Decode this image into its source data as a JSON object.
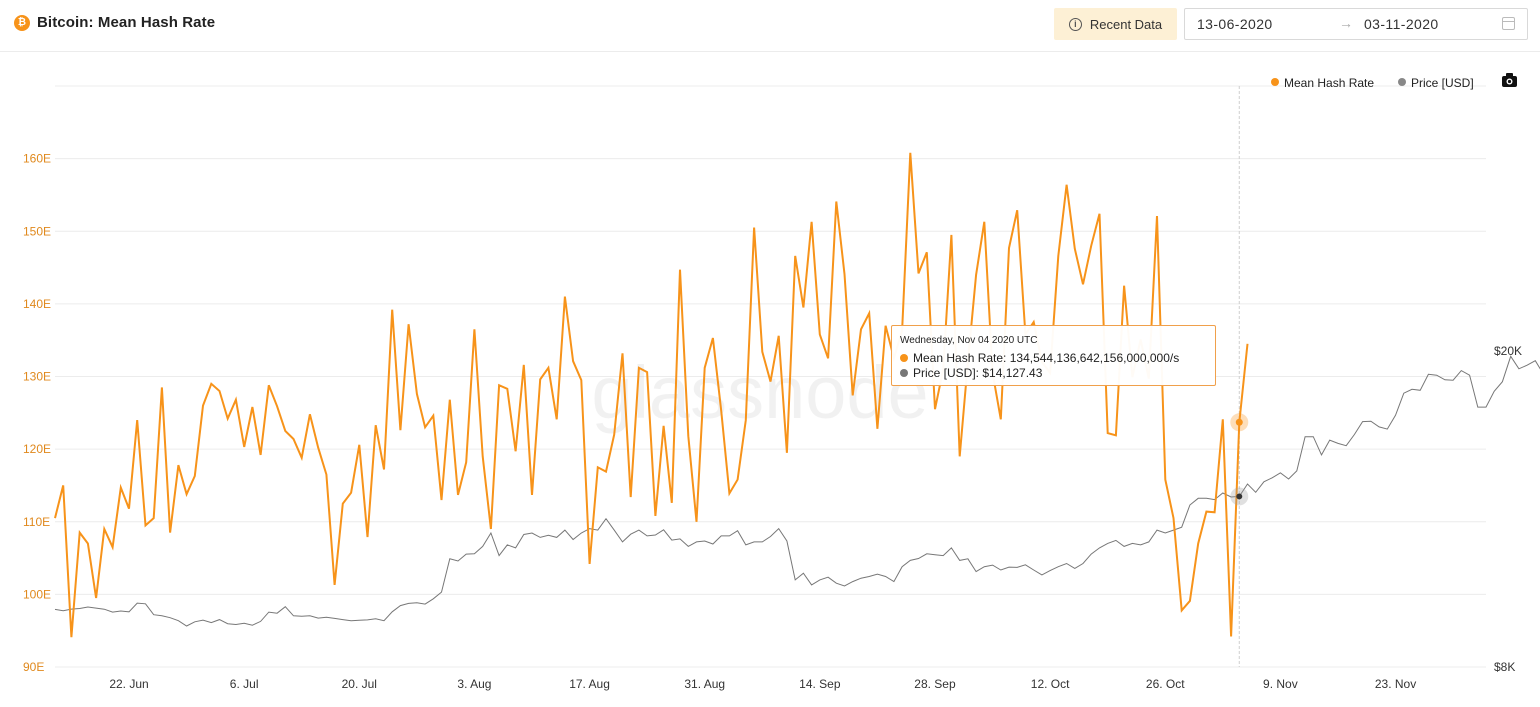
{
  "header": {
    "title": "Bitcoin: Mean Hash Rate",
    "btc_icon_glyph": "₿",
    "recent_label": "Recent Data",
    "date_from": "13-06-2020",
    "date_to": "03-11-2020",
    "arrow": "→"
  },
  "watermark": "glassnode",
  "legend": [
    {
      "label": "Mean Hash Rate",
      "color": "#f7931a"
    },
    {
      "label": "Price [USD]",
      "color": "#888888"
    }
  ],
  "tooltip": {
    "date": "Wednesday, Nov 04 2020 UTC",
    "hash_label": "Mean Hash Rate: 134,544,136,642,156,000,000/s",
    "price_label": "Price [USD]: $14,127.43"
  },
  "colors": {
    "hash": "#f7931a",
    "price": "#777777",
    "accent": "#f7931a"
  },
  "icons": {
    "title": "bitcoin-icon",
    "recent": "info-icon",
    "calendar": "calendar-icon",
    "camera": "camera-icon"
  },
  "chart_data": {
    "type": "line",
    "y_left": {
      "label": "",
      "unit": "E",
      "ticks": [
        "90E",
        "100E",
        "110E",
        "120E",
        "130E",
        "140E",
        "150E",
        "160E"
      ],
      "range": [
        90,
        170
      ]
    },
    "y_right": {
      "label": "",
      "ticks": [
        "$8K",
        "$20K"
      ],
      "scale": "log"
    },
    "x_ticks": [
      "22. Jun",
      "6. Jul",
      "20. Jul",
      "3. Aug",
      "17. Aug",
      "31. Aug",
      "14. Sep",
      "28. Sep",
      "12. Oct",
      "26. Oct",
      "9. Nov",
      "23. Nov"
    ],
    "x_range": [
      "2020-06-13",
      "2020-12-04"
    ],
    "crosshair_date": "2020-11-04",
    "grid": true,
    "legend_position": "top-right",
    "series": [
      {
        "name": "Mean Hash Rate",
        "unit": "EH/s",
        "x_start": "2020-06-13",
        "values": [
          110.5,
          115,
          94.1,
          108.5,
          107,
          99.5,
          109,
          106.5,
          114.7,
          111.8,
          124,
          109.5,
          110.5,
          128.5,
          108.5,
          117.8,
          113.8,
          116.3,
          126,
          129,
          128,
          124.2,
          126.8,
          120.3,
          125.8,
          119.2,
          128.8,
          125.9,
          122.5,
          121.4,
          118.8,
          124.8,
          120.2,
          116.5,
          101.3,
          112.5,
          114,
          120.6,
          107.9,
          123.3,
          117.2,
          139.2,
          122.6,
          137.2,
          127.6,
          123,
          124.6,
          113,
          126.8,
          113.7,
          118.2,
          136.5,
          119,
          109,
          128.8,
          128.3,
          119.7,
          131.6,
          113.7,
          129.6,
          131.2,
          124.1,
          141,
          132.1,
          129.5,
          104.2,
          117.5,
          116.9,
          122,
          133.2,
          113.4,
          131.2,
          130.6,
          110.8,
          123.2,
          112.6,
          144.7,
          121.8,
          110,
          131.2,
          135.3,
          125.3,
          113.9,
          115.8,
          124,
          150.5,
          133.4,
          129.3,
          135.6,
          119.5,
          146.6,
          139.5,
          151.3,
          135.8,
          132.5,
          154.1,
          144.1,
          127.4,
          136.5,
          138.7,
          122.8,
          137,
          132.5,
          136.3,
          160.8,
          144.2,
          147.1,
          125.5,
          131,
          149.5,
          119,
          132,
          144,
          151.3,
          130.5,
          124.1,
          147.7,
          152.9,
          135.8,
          137.5,
          132,
          130.5,
          146.6,
          156.4,
          147.6,
          142.7,
          148,
          152.4,
          122.2,
          121.9,
          142.5,
          129.9,
          135.1,
          129.7,
          152.1,
          115.8,
          110.5,
          97.8,
          99.1,
          107,
          111.4,
          111.3,
          124.1,
          94.2,
          123.7,
          134.5
        ]
      },
      {
        "name": "Price [USD]",
        "unit": "USD",
        "x_start": "2020-06-13",
        "values": [
          9455,
          9420,
          9463,
          9480,
          9521,
          9490,
          9460,
          9380,
          9410,
          9390,
          9630,
          9610,
          9310,
          9280,
          9230,
          9150,
          9010,
          9120,
          9165,
          9100,
          9180,
          9070,
          9050,
          9080,
          9030,
          9130,
          9380,
          9350,
          9530,
          9280,
          9270,
          9280,
          9220,
          9240,
          9210,
          9180,
          9150,
          9160,
          9170,
          9200,
          9150,
          9390,
          9560,
          9620,
          9640,
          9600,
          9750,
          9940,
          10950,
          10880,
          11100,
          11110,
          11350,
          11800,
          11050,
          11400,
          11300,
          11750,
          11800,
          11650,
          11720,
          11650,
          11900,
          11580,
          11800,
          11950,
          11900,
          12300,
          11900,
          11500,
          11760,
          11900,
          11700,
          11730,
          11910,
          11560,
          11600,
          11350,
          11500,
          11530,
          11430,
          11700,
          11700,
          11880,
          11400,
          11500,
          11500,
          11680,
          11950,
          11530,
          10300,
          10500,
          10150,
          10300,
          10380,
          10200,
          10120,
          10250,
          10350,
          10400,
          10470,
          10400,
          10250,
          10700,
          10900,
          10960,
          11110,
          11080,
          11050,
          11300,
          10900,
          10950,
          10550,
          10700,
          10750,
          10600,
          10690,
          10680,
          10760,
          10600,
          10450,
          10580,
          10700,
          10800,
          10650,
          10800,
          11100,
          11300,
          11450,
          11550,
          11350,
          11450,
          11400,
          11500,
          11900,
          11800,
          11900,
          12000,
          12800,
          13050,
          13050,
          13000,
          13250,
          13100,
          13120,
          13600,
          13280,
          13690,
          13850,
          14050,
          13800,
          14127,
          15600,
          15600,
          14800,
          15450,
          15300,
          15200,
          15700,
          16300,
          16320,
          16050,
          15950,
          16600,
          17700,
          17900,
          17850,
          18700,
          18650,
          18400,
          18380,
          18900,
          18650,
          17000,
          17000,
          17800,
          18300,
          19700,
          19000,
          19200,
          19450,
          18700,
          19100
        ]
      }
    ]
  }
}
